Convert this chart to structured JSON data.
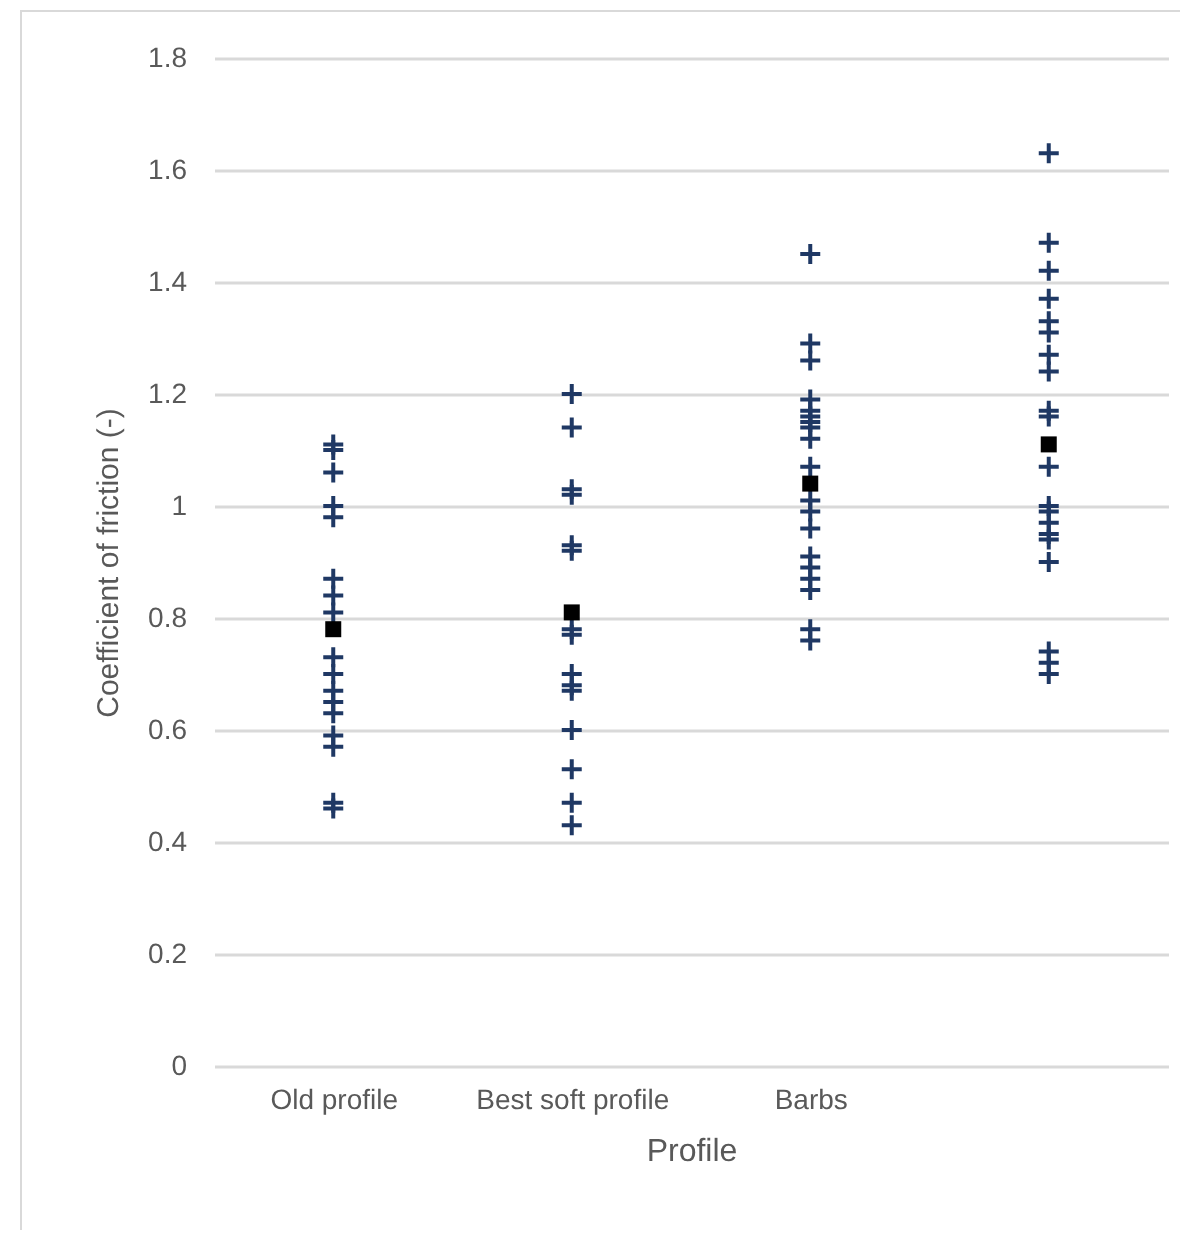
{
  "chart_data": {
    "type": "scatter",
    "xlabel": "Profile",
    "ylabel": "Coefficient of friction (-)",
    "categories": [
      "Old profile",
      "Best soft profile",
      "Barbs",
      null
    ],
    "ylim": [
      0,
      1.8
    ],
    "yticks": [
      0,
      0.2,
      0.4,
      0.6,
      0.8,
      1,
      1.2,
      1.4,
      1.6,
      1.8
    ],
    "grid": "y",
    "series": [
      {
        "color": "#1f3864",
        "marker": "cross",
        "x": [
          "Old profile",
          "Old profile",
          "Old profile",
          "Old profile",
          "Old profile",
          "Old profile",
          "Old profile",
          "Old profile",
          "Old profile",
          "Old profile",
          "Old profile",
          "Old profile",
          "Old profile",
          "Old profile",
          "Old profile",
          "Old profile",
          "Old profile",
          "Best soft profile",
          "Best soft profile",
          "Best soft profile",
          "Best soft profile",
          "Best soft profile",
          "Best soft profile",
          "Best soft profile",
          "Best soft profile",
          "Best soft profile",
          "Best soft profile",
          "Best soft profile",
          "Best soft profile",
          "Best soft profile",
          "Best soft profile",
          "Best soft profile",
          "Barbs",
          "Barbs",
          "Barbs",
          "Barbs",
          "Barbs",
          "Barbs",
          "Barbs",
          "Barbs",
          "Barbs",
          "Barbs",
          "Barbs",
          "Barbs",
          "Barbs",
          "Barbs",
          "Barbs",
          "Barbs",
          "Barbs",
          "Barbs",
          "Barbs",
          null,
          null,
          null,
          null,
          null,
          null,
          null,
          null,
          null,
          null,
          null,
          null,
          null,
          null,
          null,
          null,
          null,
          null,
          null,
          null
        ],
        "values": [
          1.11,
          1.1,
          1.06,
          1.0,
          0.98,
          0.87,
          0.84,
          0.81,
          0.73,
          0.7,
          0.67,
          0.65,
          0.63,
          0.59,
          0.57,
          0.47,
          0.46,
          1.2,
          1.14,
          1.03,
          1.02,
          0.93,
          0.92,
          0.78,
          0.77,
          0.7,
          0.68,
          0.67,
          0.6,
          0.53,
          0.47,
          0.43,
          1.45,
          1.29,
          1.26,
          1.19,
          1.17,
          1.16,
          1.15,
          1.14,
          1.12,
          1.07,
          1.01,
          0.99,
          0.96,
          0.91,
          0.89,
          0.87,
          0.85,
          0.78,
          0.76,
          1.63,
          1.47,
          1.42,
          1.37,
          1.33,
          1.31,
          1.27,
          1.24,
          1.17,
          1.16,
          1.07,
          1.0,
          0.99,
          0.97,
          0.95,
          0.94,
          0.9,
          0.74,
          0.72,
          0.7
        ]
      },
      {
        "color": "#000000",
        "marker": "square",
        "x": [
          "Old profile",
          "Best soft profile",
          "Barbs",
          null
        ],
        "values": [
          0.78,
          0.81,
          1.04,
          1.11
        ]
      }
    ]
  }
}
